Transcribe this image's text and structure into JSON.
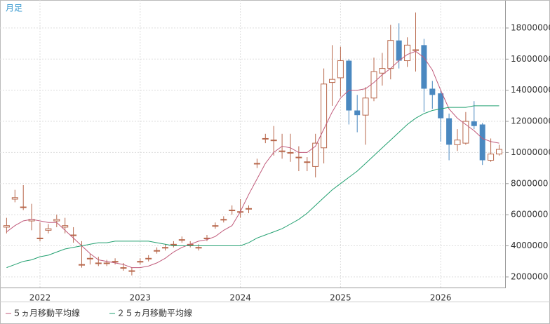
{
  "chart_data": {
    "type": "candlestick",
    "title": "月足",
    "categories": [
      null,
      null,
      null,
      null,
      "2022",
      null,
      null,
      null,
      null,
      null,
      null,
      null,
      null,
      null,
      null,
      null,
      "2023",
      null,
      null,
      null,
      null,
      null,
      null,
      null,
      null,
      null,
      null,
      null,
      "2024",
      null,
      null,
      null,
      null,
      null,
      null,
      null,
      null,
      null,
      null,
      null,
      "2025",
      null,
      null,
      null,
      null,
      null,
      null,
      null,
      null,
      null,
      null,
      null,
      "2026",
      null,
      null,
      null,
      null,
      null,
      null,
      null
    ],
    "open": [
      5200000,
      7000000,
      6500000,
      5600000,
      4500000,
      5000000,
      5600000,
      5200000,
      4700000,
      2800000,
      3200000,
      2900000,
      2900000,
      3000000,
      2600000,
      2400000,
      3000000,
      3200000,
      3700000,
      3900000,
      4100000,
      4400000,
      4100000,
      3900000,
      4500000,
      5300000,
      5700000,
      6300000,
      6200000,
      6400000,
      9300000,
      10900000,
      10800000,
      10100000,
      10000000,
      9700000,
      9400000,
      9100000,
      10300000,
      14500000,
      14800000,
      15900000,
      12700000,
      12400000,
      13500000,
      15100000,
      15400000,
      17200000,
      15900000,
      16600000,
      16900000,
      14100000,
      13800000,
      12200000,
      10500000,
      10600000,
      12000000,
      11800000,
      9500000,
      9900000
    ],
    "high": [
      5800000,
      7600000,
      7900000,
      6700000,
      5500000,
      5400000,
      6000000,
      5800000,
      5200000,
      4300000,
      3500000,
      3300000,
      3100000,
      3200000,
      2900000,
      2600000,
      3200000,
      3400000,
      3900000,
      4100000,
      4300000,
      4600000,
      4300000,
      4100000,
      4700000,
      5500000,
      5900000,
      6600000,
      7000000,
      6600000,
      9600000,
      11200000,
      11700000,
      11200000,
      11200000,
      10400000,
      9700000,
      11200000,
      15400000,
      16900000,
      16800000,
      16000000,
      13700000,
      14200000,
      16100000,
      16400000,
      18200000,
      18300000,
      17400000,
      19000000,
      17300000,
      14600000,
      14000000,
      12500000,
      11500000,
      12600000,
      13300000,
      11900000,
      10900000,
      10500000
    ],
    "low": [
      4800000,
      6800000,
      6300000,
      5000000,
      4300000,
      4800000,
      5200000,
      4800000,
      4200000,
      2600000,
      2800000,
      2700000,
      2700000,
      2800000,
      2400000,
      2100000,
      2800000,
      3000000,
      3500000,
      3700000,
      3900000,
      4200000,
      3900000,
      3700000,
      4300000,
      5100000,
      5500000,
      6000000,
      5800000,
      6100000,
      9000000,
      10600000,
      9800000,
      9600000,
      9400000,
      8800000,
      8800000,
      8400000,
      9300000,
      13000000,
      13600000,
      11800000,
      11300000,
      10500000,
      13300000,
      14300000,
      14700000,
      15400000,
      15500000,
      15200000,
      12600000,
      12800000,
      10700000,
      9500000,
      10100000,
      10500000,
      11500000,
      9200000,
      9400000,
      9800000
    ],
    "close": [
      5300000,
      7100000,
      6500000,
      5700000,
      4500000,
      5100000,
      5700000,
      5300000,
      4700000,
      2800000,
      3200000,
      2900000,
      2900000,
      3000000,
      2600000,
      2400000,
      3000000,
      3200000,
      3700000,
      3900000,
      4100000,
      4400000,
      4100000,
      3900000,
      4500000,
      5300000,
      5700000,
      6300000,
      6200000,
      6400000,
      9300000,
      10900000,
      10800000,
      10100000,
      10000000,
      9700000,
      9400000,
      10600000,
      14400000,
      14700000,
      15900000,
      12700000,
      12400000,
      13500000,
      15200000,
      15400000,
      17200000,
      15900000,
      16900000,
      16600000,
      14100000,
      13700000,
      12200000,
      10500000,
      10800000,
      12000000,
      11700000,
      9500000,
      9900000,
      10200000
    ],
    "up_color": "#b8684c",
    "down_color": "#4a88c0",
    "lines": [
      {
        "name": "５ヵ月移動平均線",
        "color": "#c05a7a",
        "values": [
          4900000,
          5300000,
          5600000,
          5700000,
          5600000,
          5500000,
          5500000,
          5000000,
          4500000,
          4000000,
          3500000,
          3100000,
          3000000,
          2900000,
          2800000,
          2600000,
          2600000,
          2700000,
          2900000,
          3200000,
          3600000,
          3900000,
          4100000,
          4300000,
          4400000,
          4600000,
          5000000,
          5300000,
          6200000,
          7300000,
          8300000,
          9300000,
          10000000,
          10400000,
          10300000,
          10000000,
          10000000,
          10400000,
          11500000,
          12600000,
          13500000,
          14000000,
          14000000,
          14100000,
          14500000,
          15000000,
          15400000,
          15900000,
          16300000,
          16500000,
          16100000,
          15300000,
          14000000,
          12800000,
          12200000,
          11800000,
          11400000,
          10900000,
          10700000,
          10600000
        ]
      },
      {
        "name": "２５ヵ月移動平均線",
        "color": "#22a070",
        "values": [
          2600000,
          2800000,
          3000000,
          3100000,
          3300000,
          3400000,
          3600000,
          3800000,
          3900000,
          4000000,
          4100000,
          4200000,
          4200000,
          4300000,
          4300000,
          4300000,
          4300000,
          4300000,
          4200000,
          4100000,
          4000000,
          4000000,
          4000000,
          4000000,
          4000000,
          4000000,
          4000000,
          4000000,
          4000000,
          4200000,
          4500000,
          4700000,
          4900000,
          5100000,
          5400000,
          5700000,
          6100000,
          6600000,
          7100000,
          7600000,
          8000000,
          8400000,
          8800000,
          9300000,
          9800000,
          10300000,
          10800000,
          11300000,
          11800000,
          12200000,
          12500000,
          12700000,
          12800000,
          12900000,
          12900000,
          12900000,
          13000000,
          13000000,
          13000000,
          13000000
        ]
      }
    ],
    "ylim": [
      1320000,
      19800000
    ],
    "yticks": [
      2000000,
      4000000,
      6000000,
      8000000,
      10000000,
      12000000,
      14000000,
      16000000,
      18000000
    ],
    "grid": true
  }
}
